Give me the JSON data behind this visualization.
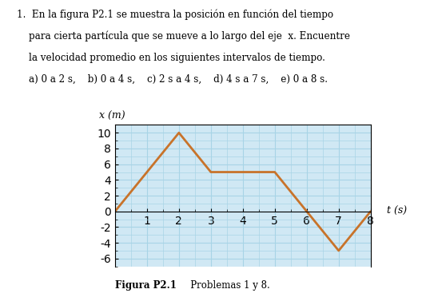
{
  "t": [
    0,
    2,
    3,
    5,
    7,
    8
  ],
  "x": [
    0,
    10,
    5,
    5,
    -5,
    0
  ],
  "line_color": "#C8732A",
  "line_width": 2.0,
  "xlim": [
    0,
    8
  ],
  "ylim": [
    -7,
    11
  ],
  "xticks": [
    1,
    2,
    3,
    4,
    5,
    6,
    7,
    8
  ],
  "yticks": [
    -6,
    -4,
    -2,
    0,
    2,
    4,
    6,
    8,
    10
  ],
  "xlabel": "t (s)",
  "ylabel": "x (m)",
  "grid_color": "#A8D4E6",
  "background_color": "#D0E8F4",
  "fig_width": 5.33,
  "fig_height": 3.77,
  "caption_bold": "Figura P2.1",
  "caption_normal": "   Problemas 1 y 8.",
  "para1": "1.  En la figura P2.1 se muestra la posición en función del tiempo",
  "para2": "    para cierta partícula que se mueve a lo largo del eje  x. Encuentre",
  "para3": "    la velocidad promedio en los siguientes intervalos de tiempo.",
  "para4": "    a) 0 a 2 s,    b) 0 a 4 s,    c) 2 s a 4 s,    d) 4 s a 7 s,    e) 0 a 8 s."
}
